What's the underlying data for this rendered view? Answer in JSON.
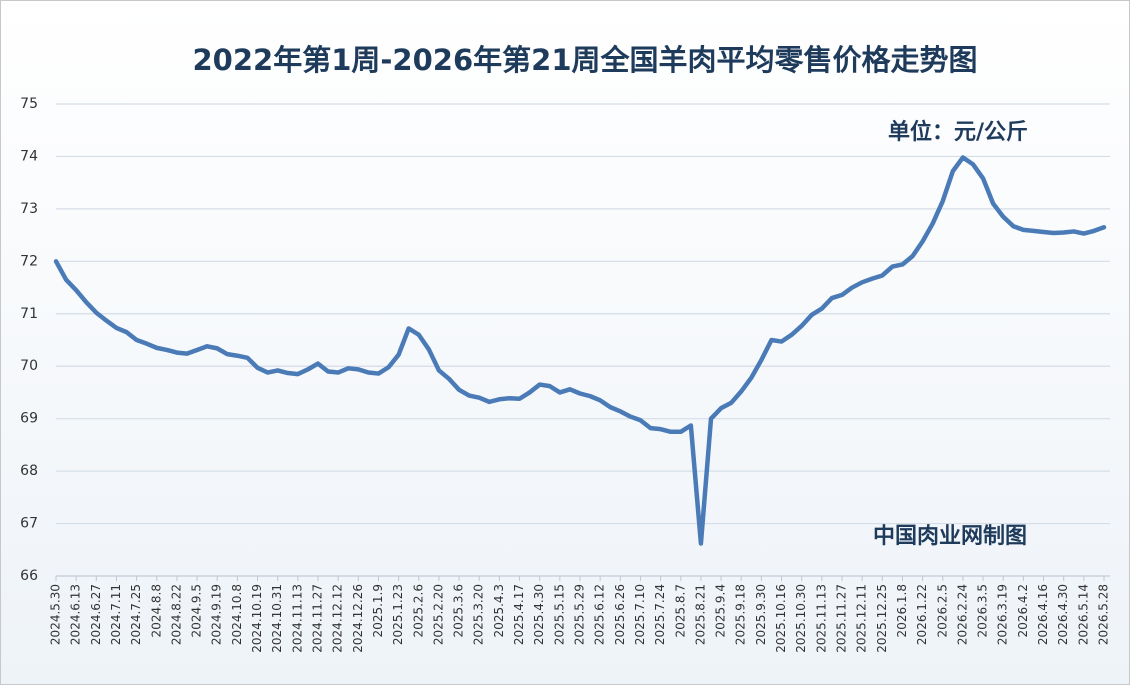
{
  "chart_data": {
    "type": "line",
    "title": "2022年第1周-2026年第21周全国羊肉平均零售价格走势图",
    "annotations": [
      "单位：元/公斤",
      "中国肉业网制图"
    ],
    "categories": [
      "2024.5.30",
      null,
      "2024.6.13",
      null,
      "2024.6.27",
      null,
      "2024.7.11",
      null,
      "2024.7.25",
      null,
      "2024.8.8",
      null,
      "2024.8.22",
      null,
      "2024.9.5",
      null,
      "2024.9.19",
      null,
      "2024.10.8",
      null,
      "2024.10.19",
      null,
      "2024.10.31",
      null,
      "2024.11.13",
      null,
      "2024.11.27",
      null,
      "2024.12.12",
      null,
      "2024.12.26",
      null,
      "2025.1.9",
      null,
      "2025.1.23",
      null,
      "2025.2.6",
      null,
      "2025.2.20",
      null,
      "2025.3.6",
      null,
      "2025.3.20",
      null,
      "2025.4.3",
      null,
      "2025.4.17",
      null,
      "2025.4.30",
      null,
      "2025.5.15",
      null,
      "2025.5.29",
      null,
      "2025.6.12",
      null,
      "2025.6.26",
      null,
      "2025.7.10",
      null,
      "2025.7.24",
      null,
      "2025.8.7",
      null,
      "2025.8.21",
      null,
      "2025.9.4",
      null,
      "2025.9.18",
      null,
      "2025.9.30",
      null,
      "2025.10.16",
      null,
      "2025.10.30",
      null,
      "2025.11.13",
      null,
      "2025.11.27",
      null,
      "2025.12.11",
      null,
      "2025.12.25",
      null,
      "2026.1.8",
      null,
      "2026.1.22",
      null,
      "2026.2.5",
      null,
      "2026.2.24",
      null,
      "2026.3.5",
      null,
      "2026.3.19",
      null,
      "2026.4.2",
      null,
      "2026.4.16",
      null,
      "2026.4.30",
      null,
      "2026.5.14",
      null,
      "2026.5.28"
    ],
    "values": [
      72.0,
      71.65,
      71.45,
      71.22,
      71.02,
      70.87,
      70.73,
      70.65,
      70.5,
      70.43,
      70.35,
      70.31,
      70.26,
      70.24,
      70.31,
      70.38,
      70.34,
      70.23,
      70.2,
      70.16,
      69.97,
      69.88,
      69.92,
      69.87,
      69.85,
      69.94,
      70.05,
      69.9,
      69.88,
      69.96,
      69.94,
      69.88,
      69.86,
      69.98,
      70.22,
      70.72,
      70.6,
      70.32,
      69.92,
      69.76,
      69.55,
      69.44,
      69.4,
      69.32,
      69.37,
      69.39,
      69.38,
      69.5,
      69.65,
      69.62,
      69.5,
      69.56,
      69.48,
      69.43,
      69.35,
      69.22,
      69.14,
      69.04,
      68.97,
      68.82,
      68.8,
      68.75,
      68.75,
      68.87,
      66.62,
      69.0,
      69.2,
      69.3,
      69.52,
      69.78,
      70.12,
      70.5,
      70.47,
      70.6,
      70.77,
      70.98,
      71.1,
      71.3,
      71.36,
      71.5,
      71.6,
      71.67,
      71.73,
      71.9,
      71.94,
      72.1,
      72.38,
      72.72,
      73.15,
      73.72,
      73.98,
      73.85,
      73.58,
      73.1,
      72.85,
      72.67,
      72.6,
      72.58,
      72.56,
      72.54,
      72.55,
      72.57,
      72.53,
      72.58,
      72.65
    ],
    "color": "#4a7bb7",
    "ylim": [
      66,
      75
    ],
    "yticks": [
      66,
      67,
      68,
      69,
      70,
      71,
      72,
      73,
      74,
      75
    ],
    "grid": true
  }
}
